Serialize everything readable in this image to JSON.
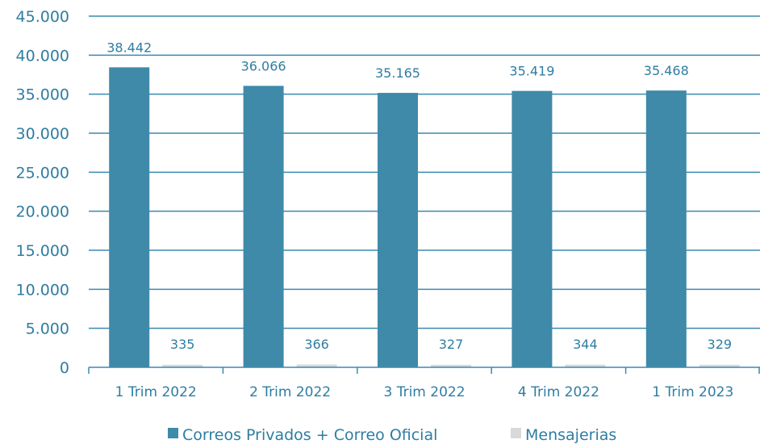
{
  "chart_data": {
    "type": "bar",
    "categories": [
      "1 Trim 2022",
      "2 Trim 2022",
      "3 Trim 2022",
      "4 Trim 2022",
      "1 Trim 2023"
    ],
    "series": [
      {
        "name": "Correos Privados + Correo Oficial",
        "values": [
          38442,
          36066,
          35165,
          35419,
          35468
        ],
        "labels": [
          "38.442",
          "36.066",
          "35.165",
          "35.419",
          "35.468"
        ],
        "color": "#3e8aa8"
      },
      {
        "name": "Mensajerias",
        "values": [
          335,
          366,
          327,
          344,
          329
        ],
        "labels": [
          "335",
          "366",
          "327",
          "344",
          "329"
        ],
        "color": "#d9d9d9"
      }
    ],
    "ylim": [
      0,
      45000
    ],
    "yticks": [
      0,
      5000,
      10000,
      15000,
      20000,
      25000,
      30000,
      35000,
      40000,
      45000
    ],
    "ytick_labels": [
      "0",
      "5.000",
      "10.000",
      "15.000",
      "20.000",
      "25.000",
      "30.000",
      "35.000",
      "40.000",
      "45.000"
    ],
    "grid": true,
    "legend": "bottom",
    "colors": {
      "text": "#2f7da2",
      "grid": "#3a8ab0",
      "axis": "#3a8ab0"
    }
  }
}
